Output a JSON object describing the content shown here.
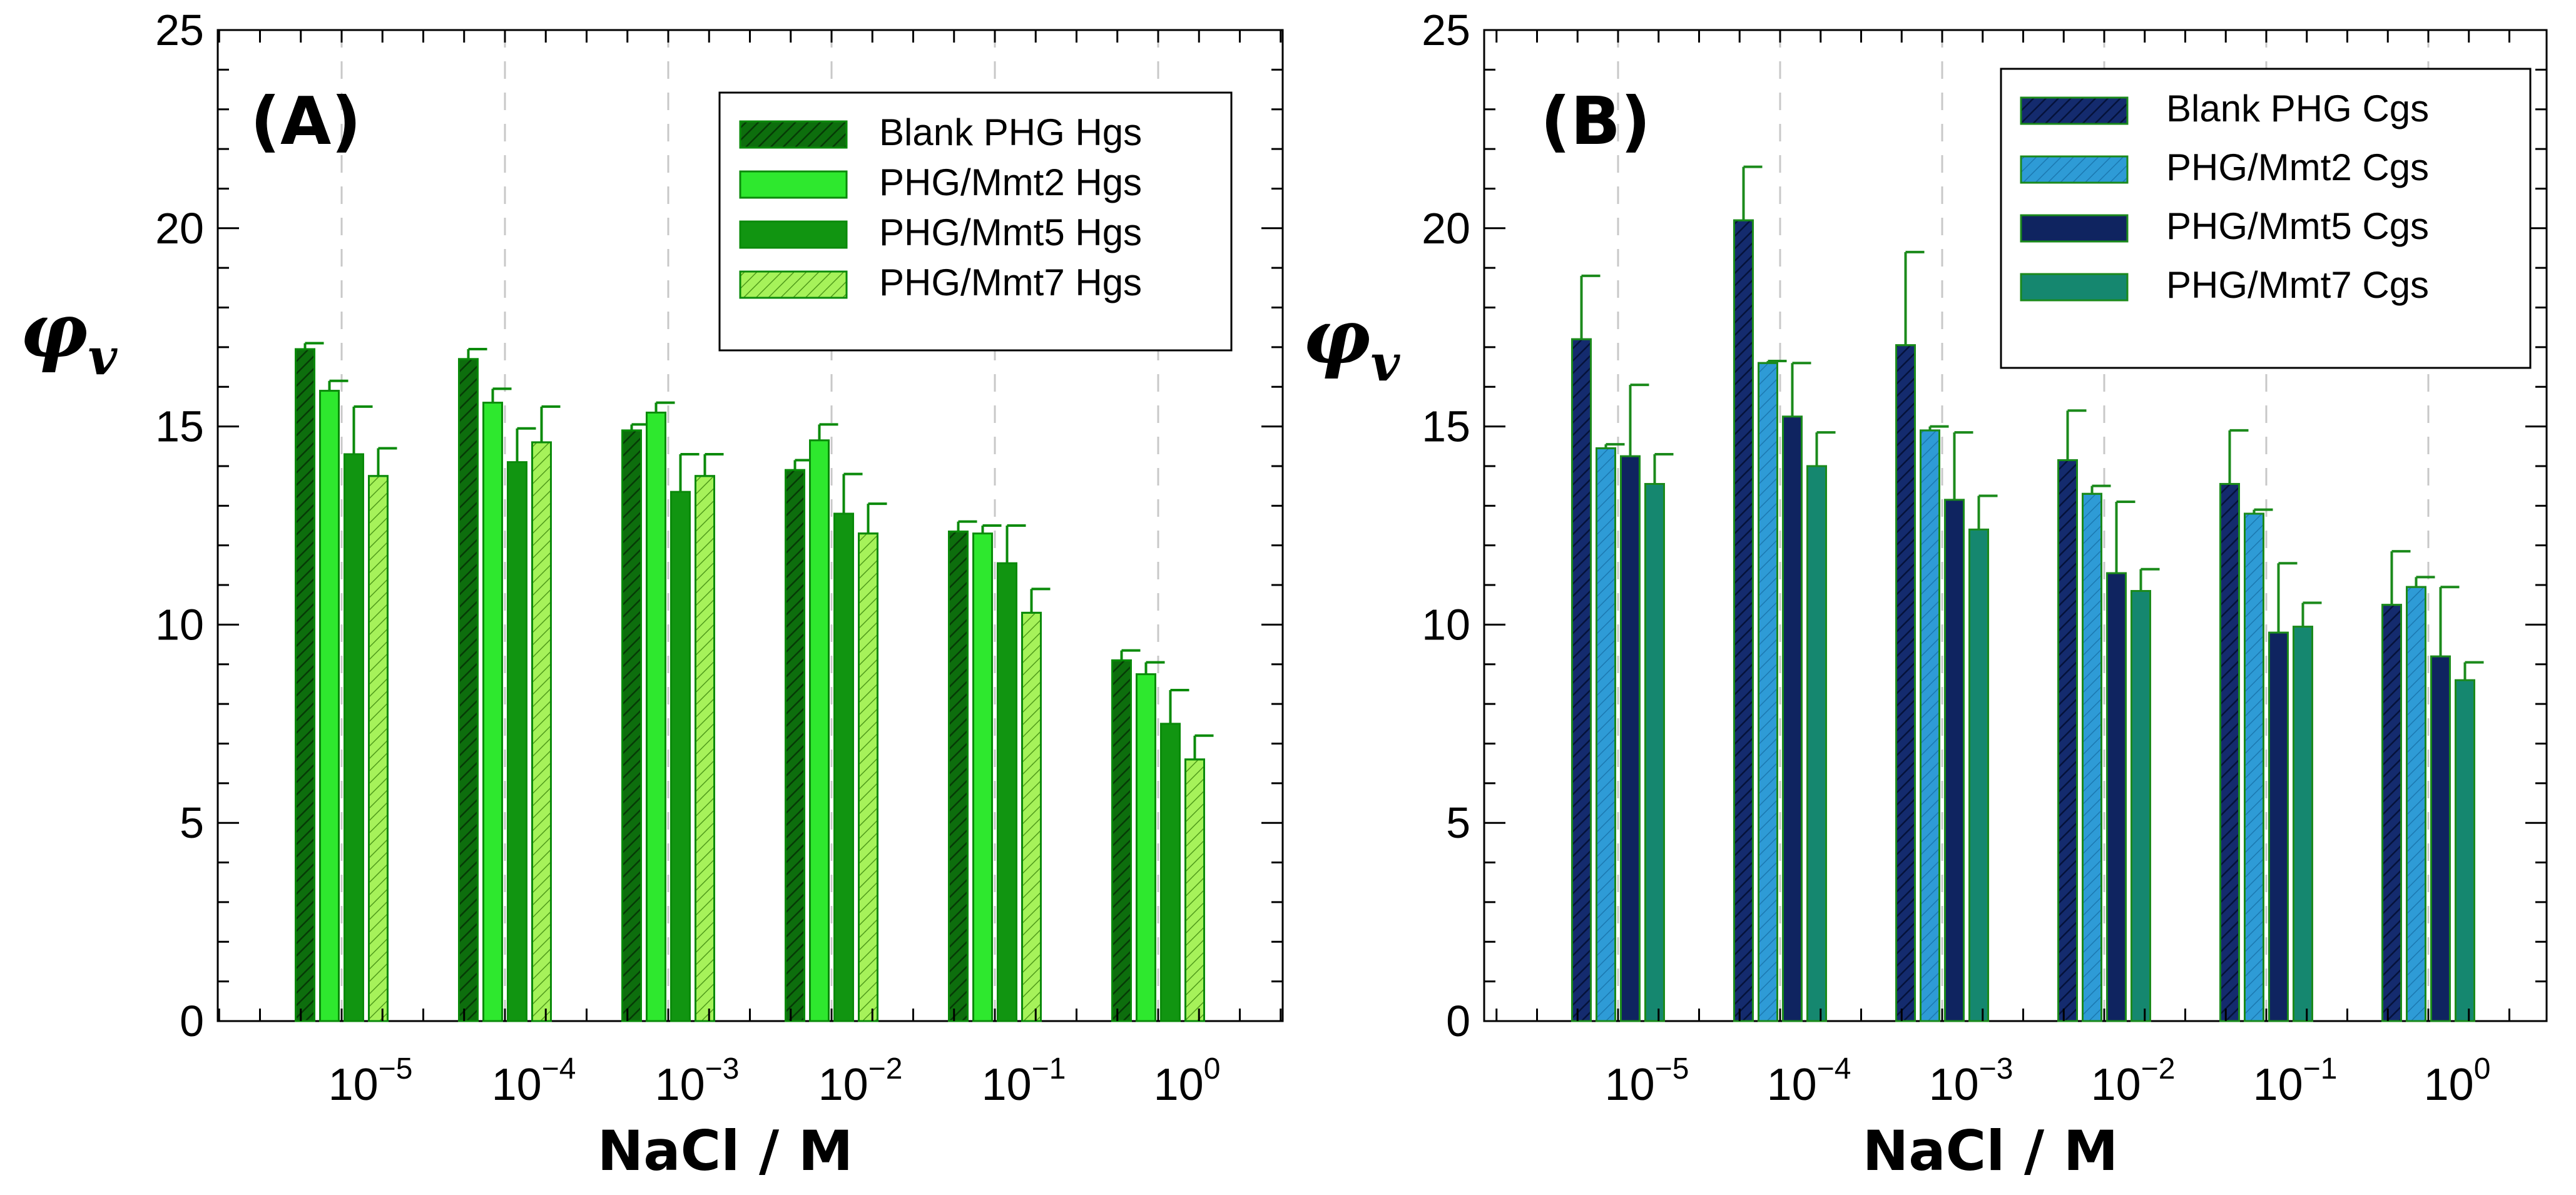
{
  "colors": {
    "green_dark": "#0d6e0d",
    "green_light": "#2ee82e",
    "green_mid": "#119511",
    "green_pale": "#a6f25a",
    "green_edge": "#0a8a0a",
    "navy": "#142b6e",
    "blue": "#2e9bd6",
    "navy_dark": "#0f2460",
    "teal": "#15876f",
    "blue_edge": "#1b8a1b",
    "grid": "#c8c8c8"
  },
  "chart_data": [
    {
      "type": "bar",
      "panel": "(A)",
      "xlabel": "NaCl / M",
      "ylabel": "φ",
      "ylabel_sub": "v",
      "ylim": [
        0,
        25
      ],
      "yticks": [
        "0",
        "5",
        "10",
        "15",
        "20",
        "25"
      ],
      "categories": [
        {
          "base": "10",
          "exp": "−5"
        },
        {
          "base": "10",
          "exp": "−4"
        },
        {
          "base": "10",
          "exp": "−3"
        },
        {
          "base": "10",
          "exp": "−2"
        },
        {
          "base": "10",
          "exp": "−1"
        },
        {
          "base": "10",
          "exp": "0"
        }
      ],
      "legend_position": "top-right",
      "series": [
        {
          "name": "Blank PHG Hgs",
          "color_key": "green_dark",
          "hatch": true,
          "values": [
            16.95,
            16.7,
            14.9,
            13.9,
            12.35,
            9.1
          ],
          "errors": [
            0.15,
            0.25,
            0.15,
            0.25,
            0.25,
            0.25
          ]
        },
        {
          "name": "PHG/Mmt2 Hgs",
          "color_key": "green_light",
          "hatch": false,
          "values": [
            15.9,
            15.6,
            15.35,
            14.65,
            12.3,
            8.75
          ],
          "errors": [
            0.25,
            0.35,
            0.25,
            0.4,
            0.2,
            0.3
          ]
        },
        {
          "name": "PHG/Mmt5 Hgs",
          "color_key": "green_mid",
          "hatch": false,
          "values": [
            14.3,
            14.1,
            13.35,
            12.8,
            11.55,
            7.5
          ],
          "errors": [
            1.2,
            0.85,
            0.95,
            1.0,
            0.95,
            0.85
          ]
        },
        {
          "name": "PHG/Mmt7 Hgs",
          "color_key": "green_pale",
          "hatch": true,
          "values": [
            13.75,
            14.6,
            13.75,
            12.3,
            10.3,
            6.6
          ],
          "errors": [
            0.7,
            0.9,
            0.55,
            0.75,
            0.6,
            0.6
          ]
        }
      ]
    },
    {
      "type": "bar",
      "panel": "(B)",
      "xlabel": "NaCl / M",
      "ylabel": "φ",
      "ylabel_sub": "v",
      "ylim": [
        0,
        25
      ],
      "yticks": [
        "0",
        "5",
        "10",
        "15",
        "20",
        "25"
      ],
      "categories": [
        {
          "base": "10",
          "exp": "−5"
        },
        {
          "base": "10",
          "exp": "−4"
        },
        {
          "base": "10",
          "exp": "−3"
        },
        {
          "base": "10",
          "exp": "−2"
        },
        {
          "base": "10",
          "exp": "−1"
        },
        {
          "base": "10",
          "exp": "0"
        }
      ],
      "legend_position": "top-right",
      "series": [
        {
          "name": "Blank PHG Cgs",
          "color_key": "navy",
          "hatch": true,
          "values": [
            17.2,
            20.2,
            17.05,
            14.15,
            13.55,
            10.5
          ],
          "errors": [
            1.6,
            1.35,
            2.35,
            1.25,
            1.35,
            1.35
          ]
        },
        {
          "name": "PHG/Mmt2 Cgs",
          "color_key": "blue",
          "hatch": true,
          "values": [
            14.45,
            16.6,
            14.9,
            13.3,
            12.8,
            10.95
          ],
          "errors": [
            0.1,
            0.05,
            0.1,
            0.2,
            0.1,
            0.25
          ]
        },
        {
          "name": "PHG/Mmt5 Cgs",
          "color_key": "navy_dark",
          "hatch": false,
          "values": [
            14.25,
            15.25,
            13.15,
            11.3,
            9.8,
            9.2
          ],
          "errors": [
            1.8,
            1.35,
            1.7,
            1.8,
            1.75,
            1.75
          ]
        },
        {
          "name": "PHG/Mmt7 Cgs",
          "color_key": "teal",
          "hatch": false,
          "values": [
            13.55,
            14.0,
            12.4,
            10.85,
            9.95,
            8.6
          ],
          "errors": [
            0.75,
            0.85,
            0.85,
            0.55,
            0.6,
            0.45
          ]
        }
      ]
    }
  ]
}
